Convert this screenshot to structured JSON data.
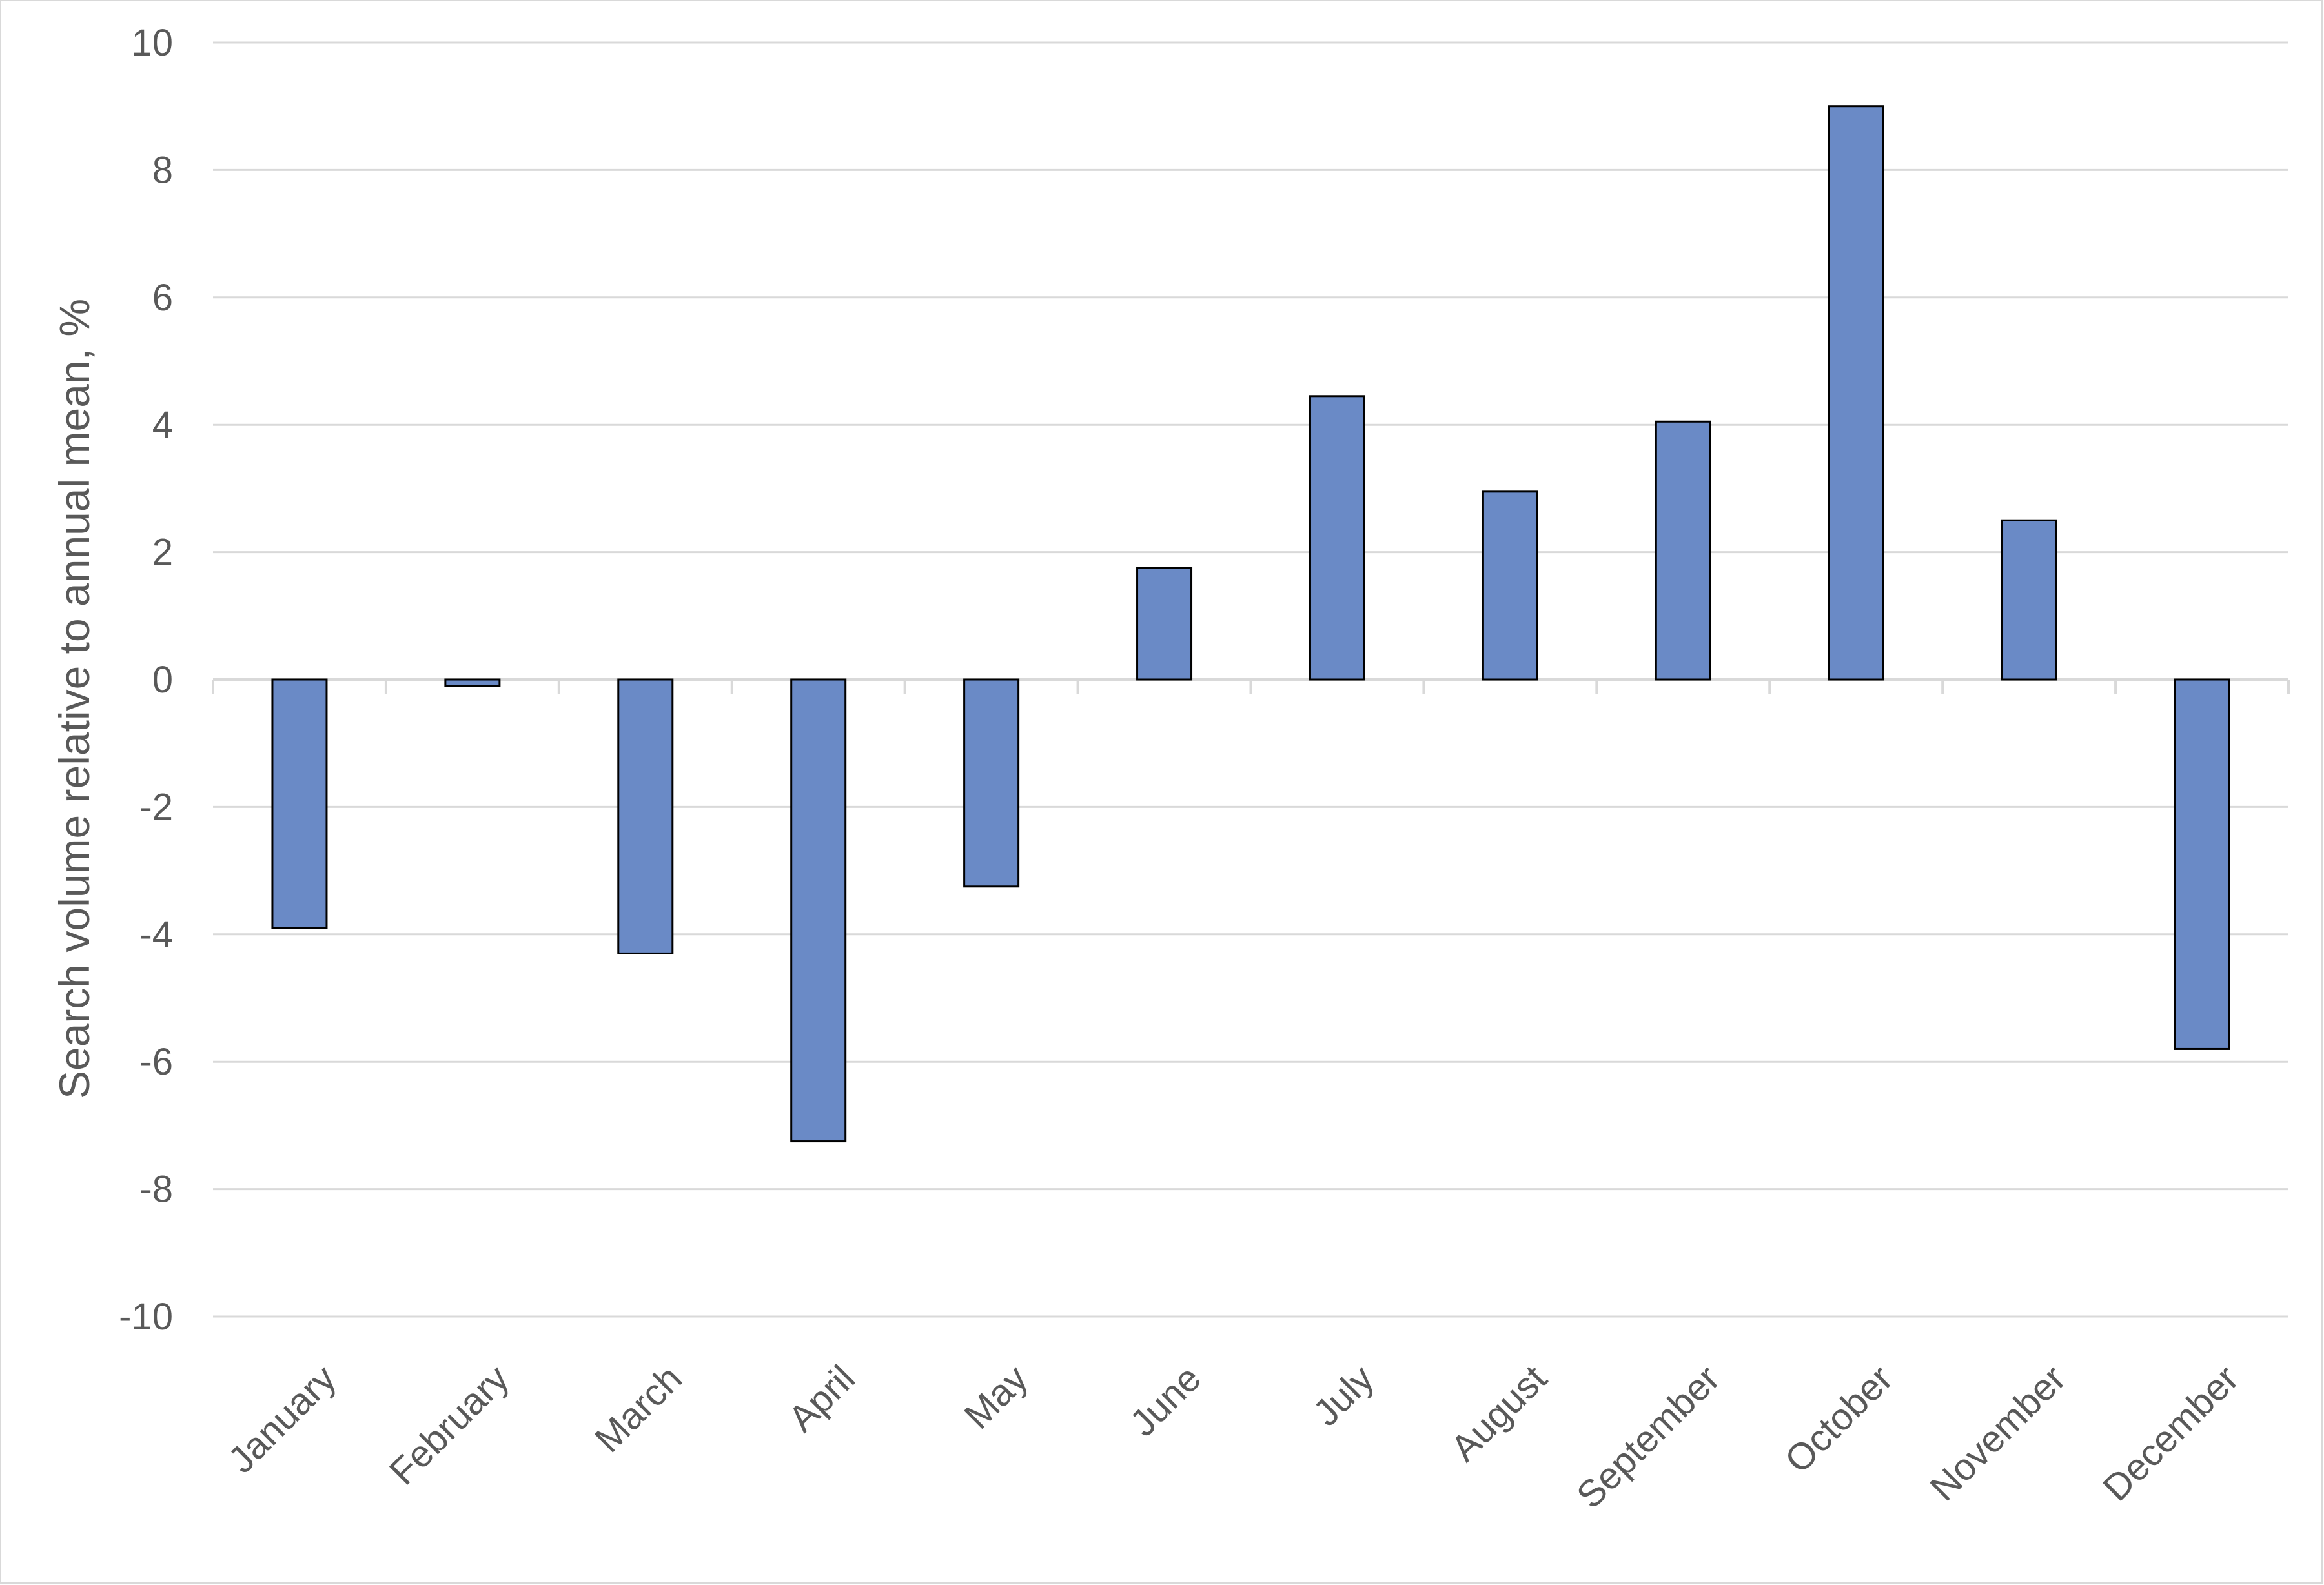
{
  "chart_data": {
    "type": "bar",
    "title": "",
    "xlabel": "",
    "ylabel": "Search volume relative to annual mean, %",
    "categories": [
      "January",
      "February",
      "March",
      "April",
      "May",
      "June",
      "July",
      "August",
      "September",
      "October",
      "November",
      "December"
    ],
    "values": [
      -3.9,
      -0.1,
      -4.3,
      -7.25,
      -3.25,
      1.75,
      4.45,
      2.95,
      4.05,
      9.0,
      2.5,
      -5.8
    ],
    "ylim": [
      -10,
      10
    ],
    "yticks": [
      10,
      8,
      6,
      4,
      2,
      0,
      -2,
      -4,
      -6,
      -8,
      -10
    ],
    "ytick_labels": [
      "10",
      "8",
      "6",
      "4",
      "2",
      "0",
      "-2",
      "-4",
      "-6",
      "-8",
      "-10"
    ],
    "grid": true,
    "legend": "none",
    "colors": {
      "bar_fill": "#6a8ac6",
      "bar_stroke": "#000000",
      "gridline": "#d9d9d9",
      "text": "#595959"
    }
  }
}
